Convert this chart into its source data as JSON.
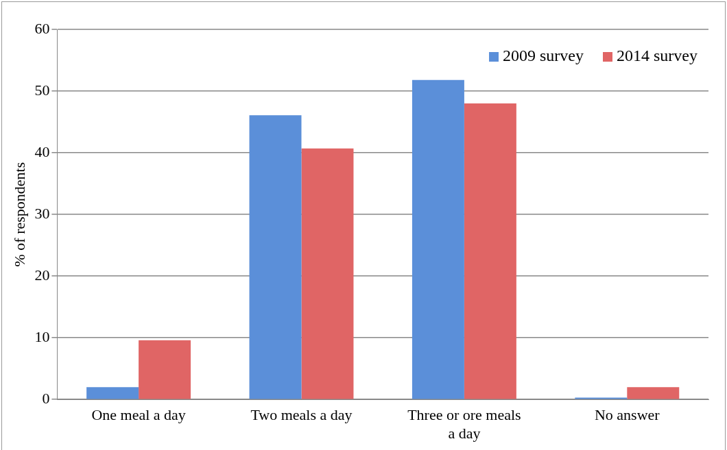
{
  "chart_data": {
    "type": "bar",
    "ylabel": "% of respondents",
    "categories": [
      "One meal a day",
      "Two meals a day",
      "Three or ore meals a day",
      "No answer"
    ],
    "series": [
      {
        "name": "2009 survey",
        "color": "#5b8fd9",
        "values": [
          2.0,
          46.1,
          51.8,
          0.3
        ]
      },
      {
        "name": "2014 survey",
        "color": "#e06565",
        "values": [
          9.6,
          40.7,
          48.0,
          2.0
        ]
      }
    ],
    "ylim": [
      0,
      60
    ],
    "yticks": [
      0,
      10,
      20,
      30,
      40,
      50,
      60
    ],
    "grid": "y",
    "legend": "top right"
  }
}
